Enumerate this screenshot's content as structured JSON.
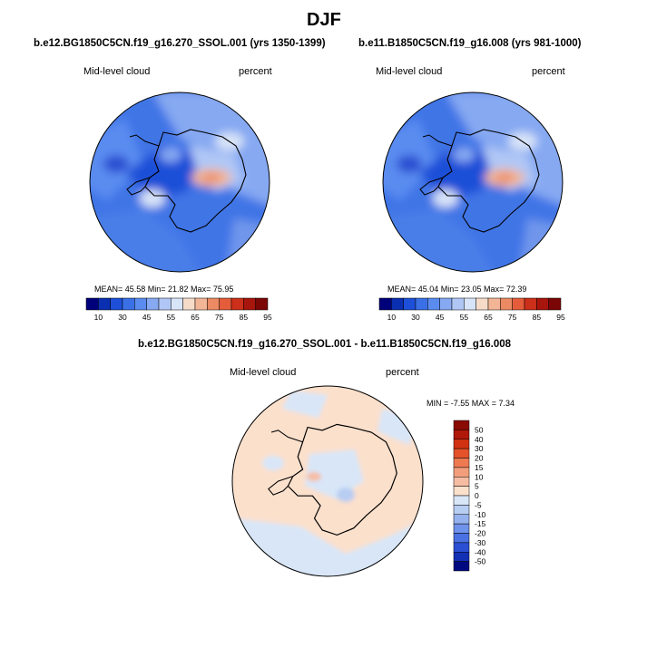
{
  "page_title": "DJF",
  "panel_left": {
    "case": "b.e12.BG1850C5CN.f19_g16.270_SSOL.001 (yrs 1350-1399)",
    "variable": "Mid-level cloud",
    "units": "percent",
    "stats": "MEAN= 45.58  Min= 21.82  Max= 75.95"
  },
  "panel_right": {
    "case": "b.e11.B1850C5CN.f19_g16.008 (yrs 981-1000)",
    "variable": "Mid-level cloud",
    "units": "percent",
    "stats": "MEAN= 45.04  Min= 23.05  Max= 72.39"
  },
  "panel_diff": {
    "case": "b.e12.BG1850C5CN.f19_g16.270_SSOL.001 - b.e11.B1850C5CN.f19_g16.008",
    "variable": "Mid-level cloud",
    "units": "percent",
    "stats": "MIN = -7.55 MAX =  7.34"
  },
  "abs_colorbar": {
    "labels": [
      "10",
      "30",
      "45",
      "55",
      "65",
      "75",
      "85",
      "95"
    ],
    "colors": [
      "#00007a",
      "#0a2fb0",
      "#1e4fd8",
      "#3a6fe6",
      "#5a8cf0",
      "#86a9f2",
      "#b0c7f5",
      "#d8e4f8",
      "#f6dcc8",
      "#f2b595",
      "#ec8a64",
      "#e45c3a",
      "#cc2f1a",
      "#a8150c",
      "#7a0606"
    ]
  },
  "diff_colorbar": {
    "labels": [
      "50",
      "40",
      "30",
      "20",
      "15",
      "10",
      "5",
      "0",
      "-5",
      "-10",
      "-15",
      "-20",
      "-30",
      "-40",
      "-50"
    ],
    "colors": [
      "#8a0a04",
      "#b0180a",
      "#d03212",
      "#e4522a",
      "#ee7a52",
      "#f29e7c",
      "#f6bca2",
      "#fbe0cc",
      "#d8e6f8",
      "#b8cdf2",
      "#95b2ee",
      "#6f92ea",
      "#4a71e2",
      "#2a4fd2",
      "#1230b4",
      "#000a80"
    ]
  }
}
